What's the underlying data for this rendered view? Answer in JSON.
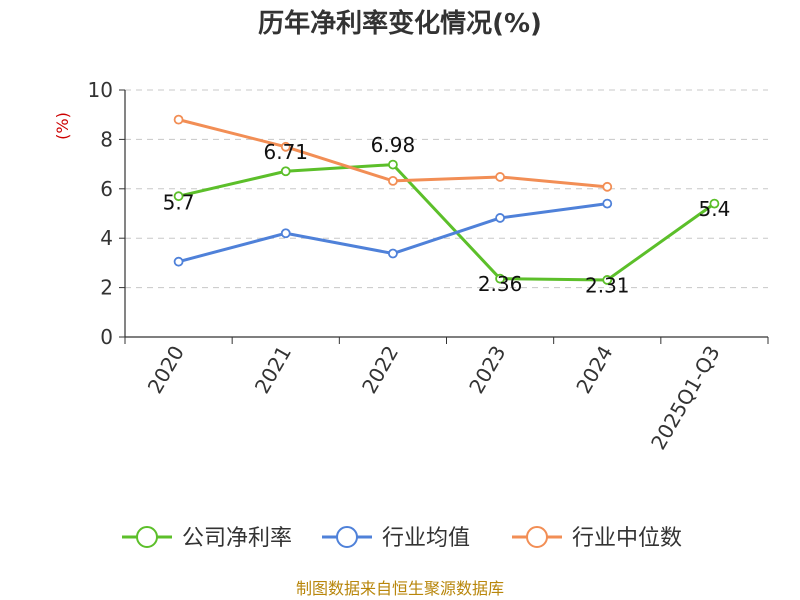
{
  "chart_data": {
    "type": "line",
    "title": "历年净利率变化情况(%)",
    "ylabel": "(%)",
    "ylim": [
      0,
      10
    ],
    "yticks": [
      0,
      2,
      4,
      6,
      8,
      10
    ],
    "categories": [
      "2020",
      "2021",
      "2022",
      "2023",
      "2024",
      "2025Q1-Q3"
    ],
    "grid": true,
    "legend_position": "bottom",
    "series": [
      {
        "name": "公司净利率",
        "color": "#5cbf2a",
        "values": [
          5.7,
          6.71,
          6.98,
          2.36,
          2.31,
          5.4
        ],
        "labels": [
          "5.7",
          "6.71",
          "6.98",
          "2.36",
          "2.31",
          "5.4"
        ]
      },
      {
        "name": "行业均值",
        "color": "#4f81d9",
        "values": [
          3.05,
          4.2,
          3.38,
          4.82,
          5.4,
          null
        ]
      },
      {
        "name": "行业中位数",
        "color": "#f28e55",
        "values": [
          8.8,
          7.7,
          6.32,
          6.48,
          6.08,
          null
        ]
      }
    ]
  },
  "source": "制图数据来自恒生聚源数据库"
}
